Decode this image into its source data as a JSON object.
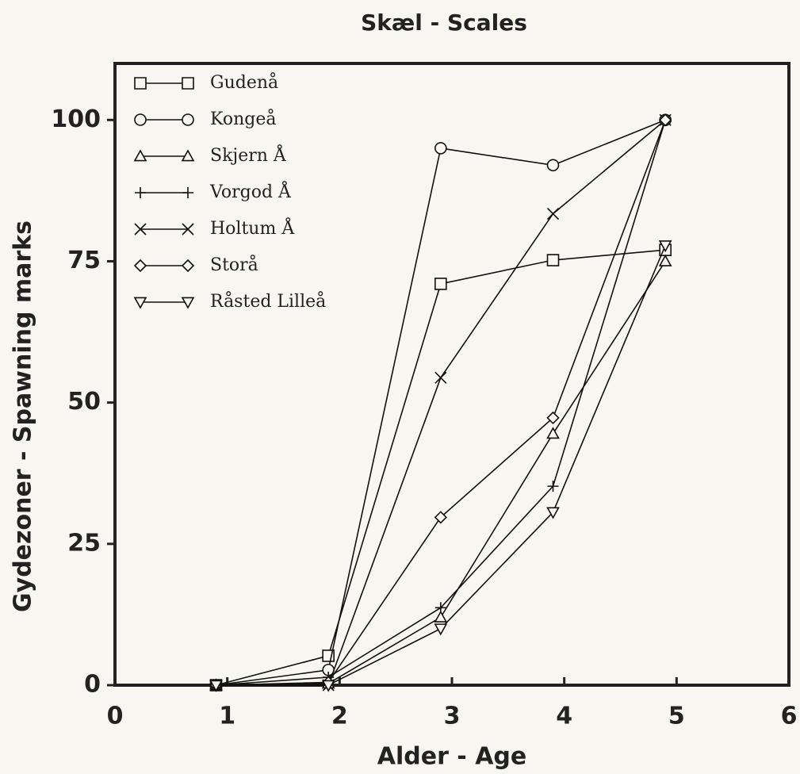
{
  "chart_data": {
    "type": "line",
    "title": "Skæl - Scales",
    "x_label": "Alder - Age",
    "y_label": "Gydezoner - Spawning marks",
    "xlim": [
      0,
      6
    ],
    "xticks": [
      0,
      1,
      2,
      3,
      4,
      5,
      6
    ],
    "ylim": [
      0,
      110
    ],
    "yticks": [
      0,
      25,
      50,
      75,
      100
    ],
    "legend": "upper left",
    "x": [
      0.9,
      1.9,
      2.9,
      3.9,
      4.9
    ],
    "series": [
      {
        "name": "Gudenå",
        "color": "#111111",
        "marker": "square",
        "values": [
          0,
          5.2,
          71,
          75.2,
          77
        ]
      },
      {
        "name": "Kongeå",
        "color": "#111111",
        "marker": "circle",
        "values": [
          0,
          2.7,
          95,
          92,
          100
        ]
      },
      {
        "name": "Skjern Å",
        "color": "#111111",
        "marker": "triangle",
        "values": [
          0,
          0.3,
          12,
          44.5,
          75
        ]
      },
      {
        "name": "Vorgod Å",
        "color": "#111111",
        "marker": "plus",
        "values": [
          0,
          1.4,
          13.7,
          35.2,
          100
        ]
      },
      {
        "name": "Holtum Å",
        "color": "#111111",
        "marker": "x",
        "values": [
          0,
          0,
          54.4,
          83.4,
          100
        ]
      },
      {
        "name": "Storå",
        "color": "#111111",
        "marker": "diamond",
        "values": [
          0,
          0.5,
          29.7,
          47.3,
          100
        ]
      },
      {
        "name": "Råsted Lilleå",
        "color": "#111111",
        "marker": "triangle-down",
        "values": [
          0,
          0,
          10,
          30.6,
          77.8
        ]
      }
    ]
  }
}
